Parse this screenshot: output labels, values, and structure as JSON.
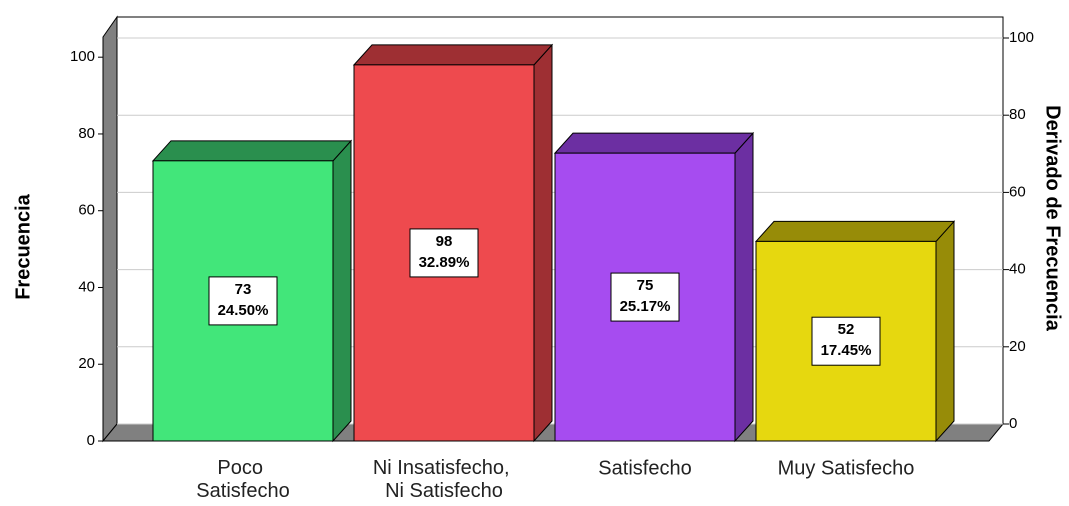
{
  "chart_data": {
    "type": "bar3d",
    "y_label": "Frecuencia",
    "y2_label": "Derivado de Frecuencia",
    "categories": [
      "Poco\nSatisfecho",
      "Ni Insatisfecho,\nNi Satisfecho",
      "Satisfecho",
      "Muy Satisfecho"
    ],
    "values": [
      73,
      98,
      75,
      52
    ],
    "percent_labels": [
      "24.50%",
      "32.89%",
      "25.17%",
      "17.45%"
    ],
    "colors": [
      "#42e67a",
      "#ee4a4e",
      "#a64cf0",
      "#e6d80f"
    ],
    "side_colors": [
      "#2a8f4e",
      "#9e2f33",
      "#6c2fa2",
      "#978c08"
    ],
    "ylim": [
      0,
      105
    ],
    "yticks": [
      0,
      20,
      40,
      60,
      80,
      100
    ],
    "y2lim": [
      0,
      100
    ],
    "y2ticks": [
      0,
      20,
      40,
      60,
      80,
      100
    ],
    "grid": true
  }
}
